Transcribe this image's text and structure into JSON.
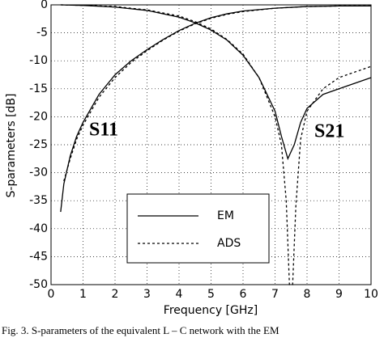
{
  "chart_data": {
    "type": "line",
    "xlabel": "Frequency [GHz]",
    "ylabel": "S-parameters [dB]",
    "xlim": [
      0,
      10
    ],
    "ylim": [
      -50,
      0
    ],
    "xticks": [
      0,
      1,
      2,
      3,
      4,
      5,
      6,
      7,
      8,
      9,
      10
    ],
    "yticks": [
      0,
      -5,
      -10,
      -15,
      -20,
      -25,
      -30,
      -35,
      -40,
      -45,
      -50
    ],
    "grid": true,
    "annotations": [
      "S11",
      "S21"
    ],
    "series": [
      {
        "name": "EM",
        "color": "#000000",
        "style": "solid",
        "x": [
          0.3,
          0.4,
          0.6,
          0.8,
          1,
          1.5,
          2,
          2.5,
          3,
          3.5,
          4,
          4.5,
          5,
          5.5,
          6,
          7,
          8,
          9,
          10
        ],
        "values": [
          -37,
          -32,
          -27,
          -23.5,
          -21,
          -16,
          -12.5,
          -10,
          -8,
          -6.2,
          -4.6,
          -3.3,
          -2.3,
          -1.6,
          -1.1,
          -0.6,
          -0.3,
          -0.2,
          -0.2
        ]
      },
      {
        "name": "ADS",
        "color": "#000000",
        "style": "dashed",
        "x": [
          0.4,
          0.6,
          0.8,
          1,
          1.5,
          2,
          2.5,
          3,
          3.5,
          4,
          4.5,
          5,
          5.5,
          6,
          7,
          8,
          9,
          10
        ],
        "values": [
          -31.5,
          -27.5,
          -24,
          -21.5,
          -16.5,
          -13,
          -10.3,
          -8.2,
          -6.3,
          -4.7,
          -3.4,
          -2.4,
          -1.7,
          -1.2,
          -0.6,
          -0.3,
          -0.2,
          -0.2
        ]
      },
      {
        "name": "EM",
        "color": "#000000",
        "style": "solid",
        "x": [
          0.3,
          1,
          2,
          3,
          4,
          4.5,
          5,
          5.5,
          6,
          6.5,
          7,
          7.2,
          7.4,
          7.6,
          7.8,
          8,
          8.5,
          9,
          9.5,
          10
        ],
        "values": [
          0,
          -0.1,
          -0.4,
          -1,
          -2.2,
          -3.2,
          -4.5,
          -6.3,
          -9,
          -13,
          -19,
          -23.5,
          -27.5,
          -25,
          -21,
          -18.5,
          -16,
          -15,
          -14,
          -13
        ]
      },
      {
        "name": "ADS",
        "color": "#000000",
        "style": "dashed",
        "x": [
          0.3,
          1,
          2,
          3,
          4,
          4.5,
          5,
          5.5,
          6,
          6.5,
          7,
          7.2,
          7.35,
          7.45,
          7.55,
          7.65,
          7.8,
          8,
          8.5,
          9,
          9.5,
          10
        ],
        "values": [
          0,
          -0.1,
          -0.3,
          -0.9,
          -2,
          -3,
          -4.3,
          -6.2,
          -8.8,
          -13,
          -20,
          -25,
          -35,
          -50,
          -50,
          -36,
          -24,
          -19,
          -15,
          -13,
          -12,
          -11
        ]
      }
    ],
    "caption": "Fig. 3.   S-parameters of the equivalent L – C network with the EM"
  }
}
